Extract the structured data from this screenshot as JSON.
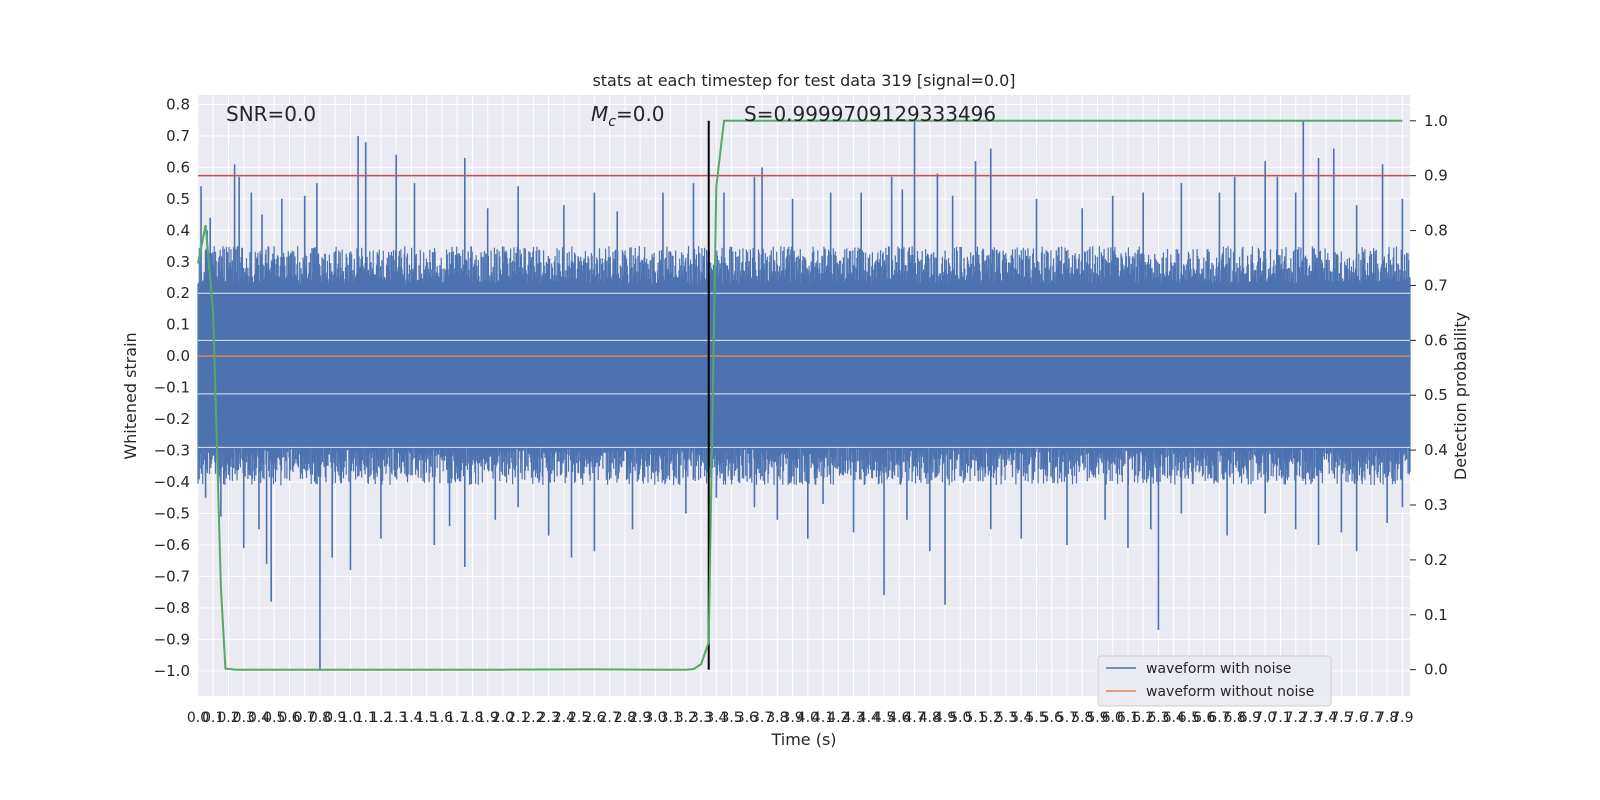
{
  "chart_data": {
    "type": "line",
    "title": "stats at each timestep for test data 319 [signal=0.0]",
    "xlabel": "Time (s)",
    "ylabel": "Whitened strain",
    "y2label": "Detection probability",
    "xlim": [
      0.0,
      7.95
    ],
    "ylim": [
      -1.08,
      0.83
    ],
    "y2lim": [
      -0.048,
      1.047
    ],
    "x_ticks": [
      0.0,
      0.1,
      0.2,
      0.3,
      0.4,
      0.5,
      0.6,
      0.7,
      0.8,
      0.9,
      1.0,
      1.1,
      1.2,
      1.3,
      1.4,
      1.5,
      1.6,
      1.7,
      1.8,
      1.9,
      2.0,
      2.1,
      2.2,
      2.3,
      2.4,
      2.5,
      2.6,
      2.7,
      2.8,
      2.9,
      3.0,
      3.1,
      3.2,
      3.3,
      3.4,
      3.5,
      3.6,
      3.7,
      3.8,
      3.9,
      4.0,
      4.1,
      4.2,
      4.3,
      4.4,
      4.5,
      4.6,
      4.7,
      4.8,
      4.9,
      5.0,
      5.1,
      5.2,
      5.3,
      5.4,
      5.5,
      5.6,
      5.7,
      5.8,
      5.9,
      6.0,
      6.1,
      6.2,
      6.3,
      6.4,
      6.5,
      6.6,
      6.7,
      6.8,
      6.9,
      7.0,
      7.1,
      7.2,
      7.3,
      7.4,
      7.5,
      7.6,
      7.7,
      7.8,
      7.9
    ],
    "y_ticks": [
      0.8,
      0.7,
      0.6,
      0.5,
      0.4,
      0.3,
      0.2,
      0.1,
      0.0,
      -0.1,
      -0.2,
      -0.3,
      -0.4,
      -0.5,
      -0.6,
      -0.7,
      -0.8,
      -0.9,
      -1.0
    ],
    "y2_ticks": [
      1.0,
      0.9,
      0.8,
      0.7,
      0.6,
      0.5,
      0.4,
      0.3,
      0.2,
      0.1,
      0.0
    ],
    "annotations": {
      "snr": "SNR=0.0",
      "mc_symbol": "M",
      "mc_sub": "c",
      "mc_value": "=0.0",
      "s": "S=0.9999709129333496"
    },
    "series": [
      {
        "name": "waveform with noise",
        "color": "#4c72b0",
        "envelope_note": "dense noise; bulk band",
        "band": [
          -0.29,
          0.23
        ],
        "spikes_pos": [
          [
            0.02,
            0.54
          ],
          [
            0.06,
            0.4
          ],
          [
            0.08,
            0.44
          ],
          [
            0.24,
            0.61
          ],
          [
            0.27,
            0.57
          ],
          [
            0.35,
            0.52
          ],
          [
            0.42,
            0.45
          ],
          [
            0.55,
            0.5
          ],
          [
            0.7,
            0.51
          ],
          [
            0.78,
            0.55
          ],
          [
            1.05,
            0.7
          ],
          [
            1.1,
            0.68
          ],
          [
            1.3,
            0.64
          ],
          [
            1.42,
            0.55
          ],
          [
            1.75,
            0.63
          ],
          [
            1.9,
            0.47
          ],
          [
            2.1,
            0.54
          ],
          [
            2.4,
            0.48
          ],
          [
            2.6,
            0.52
          ],
          [
            2.75,
            0.46
          ],
          [
            3.05,
            0.52
          ],
          [
            3.25,
            0.55
          ],
          [
            3.45,
            0.52
          ],
          [
            3.65,
            0.57
          ],
          [
            3.7,
            0.6
          ],
          [
            3.9,
            0.5
          ],
          [
            4.15,
            0.52
          ],
          [
            4.35,
            0.52
          ],
          [
            4.55,
            0.57
          ],
          [
            4.62,
            0.53
          ],
          [
            4.7,
            0.75
          ],
          [
            4.85,
            0.58
          ],
          [
            4.95,
            0.51
          ],
          [
            5.1,
            0.62
          ],
          [
            5.2,
            0.66
          ],
          [
            5.5,
            0.5
          ],
          [
            5.8,
            0.47
          ],
          [
            6.0,
            0.51
          ],
          [
            6.2,
            0.52
          ],
          [
            6.45,
            0.55
          ],
          [
            6.7,
            0.52
          ],
          [
            6.8,
            0.57
          ],
          [
            7.0,
            0.62
          ],
          [
            7.08,
            0.57
          ],
          [
            7.2,
            0.52
          ],
          [
            7.25,
            0.75
          ],
          [
            7.35,
            0.63
          ],
          [
            7.45,
            0.66
          ],
          [
            7.6,
            0.48
          ],
          [
            7.77,
            0.61
          ],
          [
            7.9,
            0.5
          ]
        ],
        "spikes_neg": [
          [
            0.05,
            -0.45
          ],
          [
            0.15,
            -0.51
          ],
          [
            0.3,
            -0.61
          ],
          [
            0.4,
            -0.55
          ],
          [
            0.45,
            -0.66
          ],
          [
            0.48,
            -0.78
          ],
          [
            0.8,
            -1.0
          ],
          [
            0.88,
            -0.64
          ],
          [
            1.0,
            -0.68
          ],
          [
            1.2,
            -0.58
          ],
          [
            1.55,
            -0.6
          ],
          [
            1.65,
            -0.54
          ],
          [
            1.75,
            -0.67
          ],
          [
            1.95,
            -0.52
          ],
          [
            2.1,
            -0.48
          ],
          [
            2.3,
            -0.57
          ],
          [
            2.45,
            -0.64
          ],
          [
            2.6,
            -0.62
          ],
          [
            2.85,
            -0.55
          ],
          [
            3.2,
            -0.5
          ],
          [
            3.4,
            -0.45
          ],
          [
            3.65,
            -0.48
          ],
          [
            3.8,
            -0.52
          ],
          [
            4.0,
            -0.58
          ],
          [
            4.1,
            -0.47
          ],
          [
            4.3,
            -0.56
          ],
          [
            4.5,
            -0.76
          ],
          [
            4.65,
            -0.52
          ],
          [
            4.8,
            -0.62
          ],
          [
            4.9,
            -0.79
          ],
          [
            5.2,
            -0.55
          ],
          [
            5.4,
            -0.58
          ],
          [
            5.7,
            -0.6
          ],
          [
            5.95,
            -0.52
          ],
          [
            6.1,
            -0.61
          ],
          [
            6.25,
            -0.55
          ],
          [
            6.3,
            -0.87
          ],
          [
            6.45,
            -0.5
          ],
          [
            6.75,
            -0.57
          ],
          [
            7.0,
            -0.5
          ],
          [
            7.2,
            -0.55
          ],
          [
            7.35,
            -0.6
          ],
          [
            7.5,
            -0.56
          ],
          [
            7.6,
            -0.62
          ],
          [
            7.8,
            -0.53
          ],
          [
            7.9,
            -0.48
          ]
        ]
      },
      {
        "name": "waveform without noise",
        "color": "#dd8452",
        "x": [
          0.0,
          7.95
        ],
        "y": [
          0.0,
          0.0
        ]
      },
      {
        "name": "detection probability",
        "axis": "right",
        "color": "#55a868",
        "x": [
          0.0,
          0.05,
          0.1,
          0.15,
          0.18,
          0.25,
          0.4,
          1.0,
          2.0,
          2.6,
          3.0,
          3.2,
          3.25,
          3.3,
          3.35,
          3.4,
          3.45,
          3.5,
          4.0,
          5.0,
          6.0,
          7.0,
          7.9
        ],
        "y": [
          0.74,
          0.81,
          0.65,
          0.15,
          0.002,
          0.0,
          0.0,
          0.0,
          0.0,
          0.0005,
          0.0,
          0.0,
          0.001,
          0.01,
          0.05,
          0.88,
          1.0,
          1.0,
          1.0,
          1.0,
          1.0,
          1.0,
          1.0
        ]
      }
    ],
    "threshold_line": {
      "axis": "right",
      "y": 0.9,
      "color": "#c44e52"
    },
    "vertical_marker": {
      "x": 3.35,
      "color": "#000000"
    },
    "legend": {
      "placement": "lower-right",
      "entries": [
        "waveform with noise",
        "waveform without noise"
      ]
    },
    "grid": true,
    "colors": {
      "background": "#eaeaf2",
      "grid": "#ffffff"
    }
  }
}
